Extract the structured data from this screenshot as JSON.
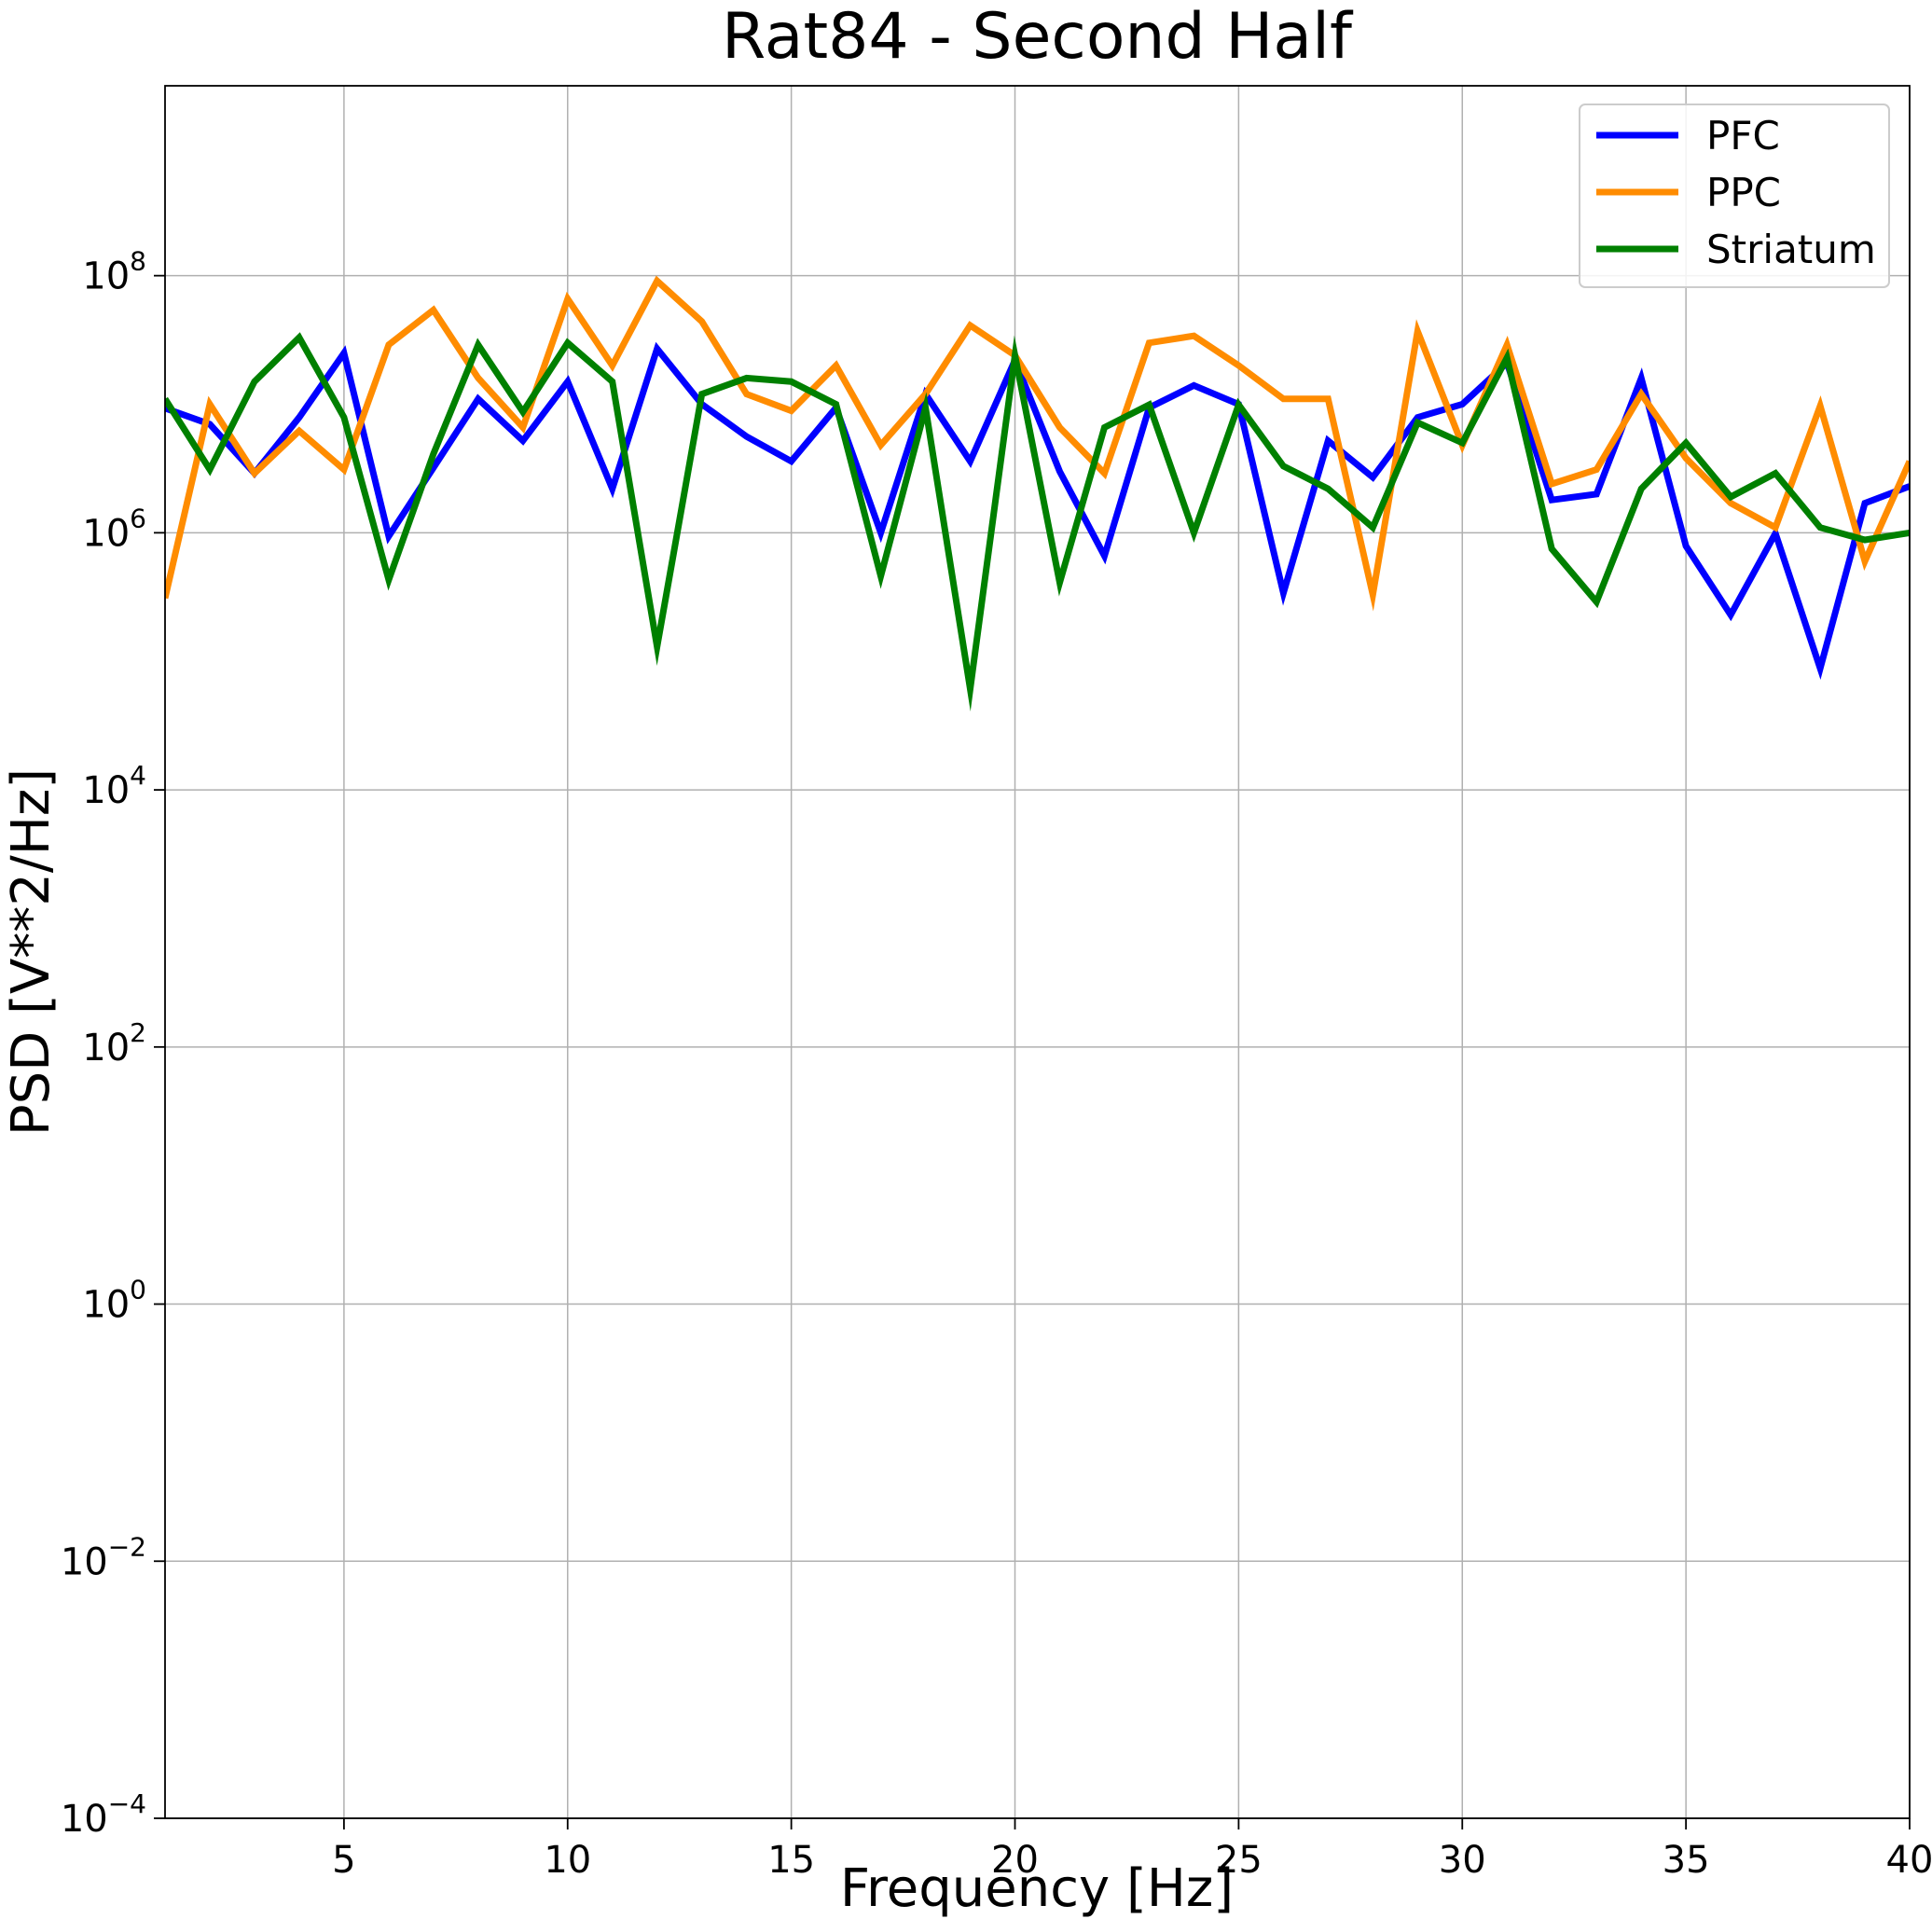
{
  "chart_data": {
    "type": "line",
    "title": "Rat84 - Second Half",
    "xlabel": "Frequency [Hz]",
    "ylabel": "PSD [V**2/Hz]",
    "xlim": [
      1,
      40
    ],
    "ylim": [
      0.0001,
      3000000000
    ],
    "yscale": "log",
    "grid": true,
    "legend_position": "top-right",
    "x_ticks": [
      5,
      10,
      15,
      20,
      25,
      30,
      35,
      40
    ],
    "y_tick_exponents": [
      -4,
      -2,
      0,
      2,
      4,
      6,
      8
    ],
    "y_tick_base": "10",
    "x": [
      1,
      2,
      3,
      4,
      5,
      6,
      7,
      8,
      9,
      10,
      11,
      12,
      13,
      14,
      15,
      16,
      17,
      18,
      19,
      20,
      21,
      22,
      23,
      24,
      25,
      26,
      27,
      28,
      29,
      30,
      31,
      32,
      33,
      34,
      35,
      36,
      37,
      38,
      39,
      40
    ],
    "series": [
      {
        "name": "PFC",
        "color": "#0000ff",
        "values": [
          9300000.0,
          7000000.0,
          2900000.0,
          7900000.0,
          25000000.0,
          940000.0,
          3200000.0,
          11000000.0,
          5200000.0,
          15000000.0,
          2200000.0,
          27000000.0,
          10000000.0,
          5600000.0,
          3600000.0,
          9400000.0,
          1000000.0,
          12000000.0,
          3600000.0,
          22000000.0,
          3000000.0,
          660000.0,
          9400000.0,
          14000000.0,
          10000000.0,
          340000.0,
          5200000.0,
          2700000.0,
          7900000.0,
          10000000.0,
          21000000.0,
          1800000.0,
          2000000.0,
          16000000.0,
          790000.0,
          230000.0,
          990000.0,
          88000.0,
          1700000.0,
          2300000.0
        ]
      },
      {
        "name": "PPC",
        "color": "#ff8c00",
        "values": [
          310000.0,
          10000000.0,
          2900000.0,
          6200000.0,
          3100000.0,
          29000000.0,
          54000000.0,
          16000000.0,
          6600000.0,
          66000000.0,
          20000000.0,
          91000000.0,
          44000000.0,
          12000000.0,
          8900000.0,
          20000000.0,
          4800000.0,
          12000000.0,
          41000000.0,
          24000000.0,
          6600000.0,
          2900000.0,
          30000000.0,
          34000000.0,
          20000000.0,
          11000000.0,
          11000000.0,
          330000.0,
          37000000.0,
          4800000.0,
          29000000.0,
          2400000.0,
          3100000.0,
          12000000.0,
          3800000.0,
          1700000.0,
          1100000.0,
          9700000.0,
          600000.0,
          3600000.0
        ]
      },
      {
        "name": "Striatum",
        "color": "#008000",
        "values": [
          11000000.0,
          3100000.0,
          15000000.0,
          33000000.0,
          7900000.0,
          430000.0,
          4100000.0,
          29000000.0,
          8700000.0,
          30000000.0,
          15000000.0,
          130000.0,
          12000000.0,
          16000000.0,
          15000000.0,
          10000000.0,
          460000.0,
          9400000.0,
          61000.0,
          24000000.0,
          410000.0,
          6600000.0,
          9900000.0,
          1000000.0,
          9900000.0,
          3300000.0,
          2200000.0,
          1100000.0,
          7200000.0,
          5000000.0,
          23000000.0,
          750000.0,
          290000.0,
          2200000.0,
          5000000.0,
          1900000.0,
          2900000.0,
          1100000.0,
          880000.0,
          1000000.0
        ]
      }
    ]
  }
}
